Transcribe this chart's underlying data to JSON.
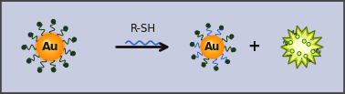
{
  "bg_color": "#c8cce0",
  "border_color": "#444444",
  "au_color_center": "#ffaa00",
  "au_color_edge": "#ff8800",
  "au_text": "Au",
  "au_text_color": "#1a1a1a",
  "dark_ligand_color": "#1a3a1a",
  "blue_ligand_color": "#3366cc",
  "green_ligand_color": "#66cc00",
  "arrow_color": "#111111",
  "rsh_text": "R-SH",
  "rsh_color": "#111111",
  "wave_color": "#3366cc",
  "plus_color": "#111111",
  "starburst_outer": "#aacc00",
  "starburst_inner": "#ffff88",
  "starburst_center": "#ffffff"
}
